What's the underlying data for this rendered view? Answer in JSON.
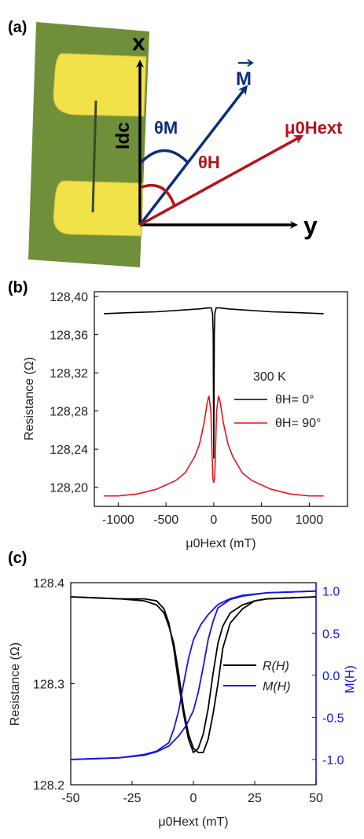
{
  "panel_a": {
    "label": "(a)",
    "x_axis": "x",
    "y_axis": "y",
    "M": "M",
    "H_ext": "μ0Hext",
    "theta_M": "θM",
    "theta_H": "θH",
    "I_dc": "Idc",
    "colors": {
      "substrate": "#6f8f3a",
      "contact": "#f1e24a",
      "blue": "#0b2e7a",
      "red": "#b5121b"
    }
  },
  "panel_b": {
    "label": "(b)",
    "temperature": "300 K"
  },
  "panel_c": {
    "label": "(c)"
  },
  "chart_data": [
    {
      "type": "line",
      "panel": "(b)",
      "xlabel": "μ0Hext (mT)",
      "ylabel": "Resistance (Ω)",
      "xlim": [
        -1250,
        1400
      ],
      "ylim": [
        128.18,
        128.405
      ],
      "xticks": [
        -1000,
        -500,
        0,
        500,
        1000
      ],
      "yticks": [
        128.2,
        128.24,
        128.28,
        128.32,
        128.36,
        128.4
      ],
      "ytick_labels": [
        "128,20",
        "128,24",
        "128,28",
        "128,32",
        "128,36",
        "128,40"
      ],
      "annotation": "300 K",
      "legend_position": "right",
      "series": [
        {
          "name": "θH= 0°",
          "color": "#000000",
          "x": [
            -1150,
            -900,
            -600,
            -300,
            -150,
            -60,
            -25,
            -12,
            -6,
            -3,
            0,
            3,
            6,
            12,
            25,
            60,
            150,
            300,
            600,
            900,
            1150
          ],
          "y": [
            128.382,
            128.383,
            128.384,
            128.386,
            128.387,
            128.388,
            128.388,
            128.382,
            128.36,
            128.3,
            128.23,
            128.3,
            128.36,
            128.382,
            128.388,
            128.388,
            128.387,
            128.386,
            128.384,
            128.383,
            128.382
          ]
        },
        {
          "name": "θH= 90°",
          "color": "#e8141c",
          "x": [
            -1150,
            -1000,
            -800,
            -600,
            -400,
            -300,
            -200,
            -150,
            -100,
            -70,
            -50,
            -30,
            -10,
            0,
            10,
            30,
            50,
            70,
            100,
            150,
            200,
            300,
            400,
            600,
            800,
            1000,
            1150
          ],
          "y": [
            128.191,
            128.191,
            128.193,
            128.198,
            128.207,
            128.215,
            128.232,
            128.245,
            128.268,
            128.288,
            128.296,
            128.28,
            128.21,
            128.205,
            128.21,
            128.28,
            128.296,
            128.288,
            128.268,
            128.245,
            128.232,
            128.215,
            128.207,
            128.198,
            128.193,
            128.191,
            128.191
          ]
        }
      ]
    },
    {
      "type": "line",
      "panel": "(c)",
      "xlabel": "μ0Hext (mT)",
      "ylabel": "Resistance (Ω)",
      "y2label": "M(H)",
      "xlim": [
        -50,
        50
      ],
      "ylim": [
        128.2,
        128.4
      ],
      "y2lim": [
        -1.3,
        1.1
      ],
      "xticks": [
        -50,
        -25,
        0,
        25,
        50
      ],
      "yticks": [
        128.2,
        128.3,
        128.4
      ],
      "y2ticks": [
        -1.0,
        -0.5,
        0.0,
        0.5,
        1.0
      ],
      "y2tick_labels": [
        "-1.0",
        "-0.5",
        "0.0",
        "0.5",
        "1.0"
      ],
      "legend_position": "right",
      "series": [
        {
          "name": "R(H)",
          "color": "#000000",
          "axis": "left",
          "x": [
            -50,
            -40,
            -30,
            -20,
            -15,
            -12,
            -10,
            -8,
            -6,
            -4,
            -2,
            0,
            2,
            4,
            6,
            8,
            10,
            12,
            15,
            20,
            25,
            30,
            40,
            50
          ],
          "y": [
            128.386,
            128.385,
            128.384,
            128.384,
            128.382,
            128.374,
            128.36,
            128.335,
            128.3,
            128.27,
            128.245,
            128.232,
            128.236,
            128.25,
            128.275,
            128.31,
            128.34,
            128.357,
            128.37,
            128.378,
            128.382,
            128.384,
            128.385,
            128.386
          ]
        },
        {
          "name": "R(H)",
          "color": "#000000",
          "axis": "left",
          "x": [
            -50,
            -40,
            -30,
            -20,
            -15,
            -12,
            -10,
            -8,
            -6,
            -4,
            -2,
            0,
            2,
            4,
            6,
            8,
            10,
            12,
            15,
            20,
            25,
            30,
            40,
            50
          ],
          "y": [
            128.386,
            128.385,
            128.384,
            128.382,
            128.378,
            128.37,
            128.357,
            128.34,
            128.31,
            128.275,
            128.25,
            128.236,
            128.232,
            128.232,
            128.245,
            128.27,
            128.3,
            128.335,
            128.36,
            128.374,
            128.382,
            128.384,
            128.385,
            128.386
          ]
        },
        {
          "name": "M(H)",
          "color": "#1515e0",
          "axis": "right",
          "x": [
            -50,
            -40,
            -30,
            -20,
            -15,
            -10,
            -6,
            -3,
            0,
            2,
            4,
            6,
            8,
            10,
            15,
            20,
            30,
            40,
            50
          ],
          "y": [
            -1.0,
            -0.99,
            -0.98,
            -0.95,
            -0.91,
            -0.84,
            -0.72,
            -0.6,
            -0.42,
            -0.2,
            0.1,
            0.42,
            0.64,
            0.8,
            0.9,
            0.94,
            0.98,
            0.99,
            1.0
          ]
        },
        {
          "name": "M(H)",
          "color": "#1515e0",
          "axis": "right",
          "x": [
            -50,
            -40,
            -30,
            -20,
            -15,
            -10,
            -8,
            -6,
            -4,
            -2,
            0,
            3,
            6,
            10,
            15,
            20,
            30,
            40,
            50
          ],
          "y": [
            -1.0,
            -0.99,
            -0.98,
            -0.94,
            -0.9,
            -0.8,
            -0.64,
            -0.42,
            -0.1,
            0.2,
            0.42,
            0.6,
            0.72,
            0.84,
            0.91,
            0.95,
            0.98,
            0.99,
            1.0
          ]
        }
      ]
    }
  ]
}
